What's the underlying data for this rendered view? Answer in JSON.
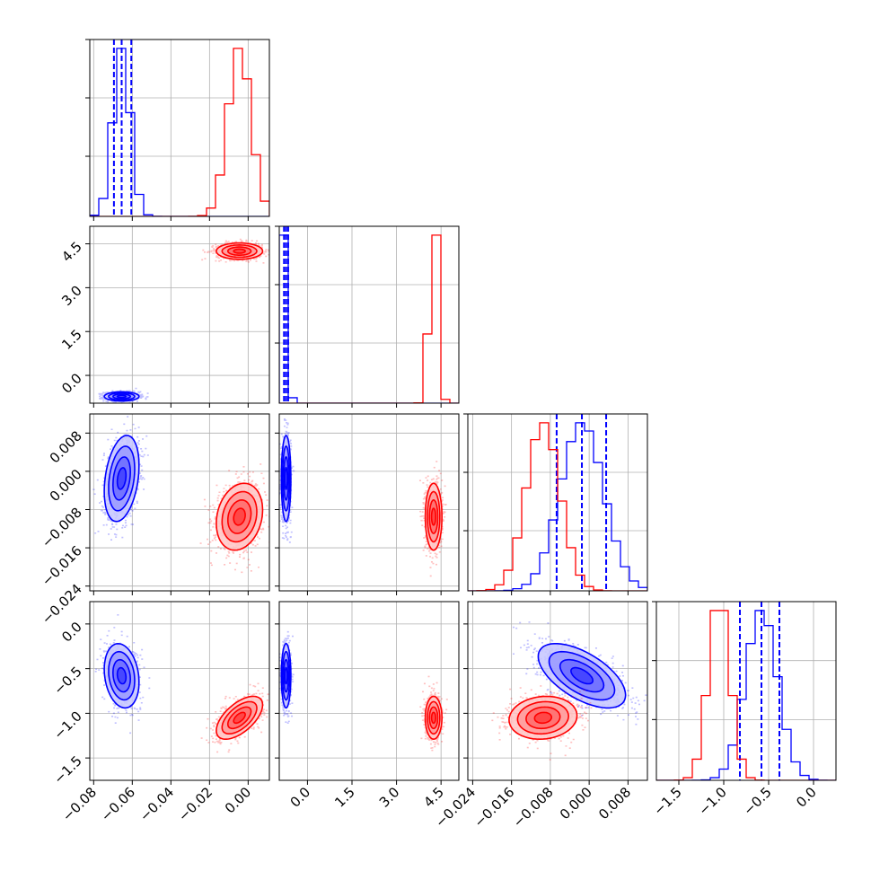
{
  "chart_data": {
    "type": "corner",
    "title": "",
    "parameters": [
      {
        "ticks": [
          -0.08,
          -0.06,
          -0.04,
          -0.02,
          0.0
        ],
        "tick_labels": [
          "−0.08",
          "−0.06",
          "−0.04",
          "−0.02",
          "0.00"
        ],
        "range": [
          -0.082,
          0.011
        ]
      },
      {
        "ticks": [
          0.0,
          1.5,
          3.0,
          4.5
        ],
        "tick_labels": [
          "0.0",
          "1.5",
          "3.0",
          "4.5"
        ],
        "range": [
          -0.95,
          5.1
        ]
      },
      {
        "ticks": [
          -0.024,
          -0.016,
          -0.008,
          0.0,
          0.008
        ],
        "tick_labels": [
          "−0.024",
          "−0.016",
          "−0.008",
          "0.000",
          "0.008"
        ],
        "range": [
          -0.025,
          0.012
        ]
      },
      {
        "ticks": [
          -1.5,
          -1.0,
          -0.5,
          0.0
        ],
        "tick_labels": [
          "−1.5",
          "−1.0",
          "−0.5",
          "0.0"
        ],
        "range": [
          -1.75,
          0.25
        ]
      }
    ],
    "series": [
      {
        "name": "",
        "color": "#0000ff",
        "means": [
          -0.0655,
          -0.72,
          -0.0015,
          -0.58
        ],
        "sigmas": [
          0.0045,
          0.08,
          0.0045,
          0.18
        ],
        "quantile_lines": [
          [
            -0.0695,
            -0.0655,
            -0.0605
          ],
          [
            -0.79,
            -0.72,
            -0.65
          ],
          [
            -0.0067,
            -0.0015,
            0.0035
          ],
          [
            -0.82,
            -0.58,
            -0.38
          ]
        ],
        "correlations": [
          [
            0,
            1,
            0.0
          ],
          [
            0,
            2,
            0.3
          ],
          [
            0,
            3,
            -0.2
          ],
          [
            1,
            2,
            0.0
          ],
          [
            1,
            3,
            0.0
          ],
          [
            2,
            3,
            -0.6
          ]
        ],
        "hist_peak_bins": [
          [
            -0.072,
            -0.068,
            -0.064,
            -0.06
          ],
          [
            -0.74,
            -0.7
          ],
          [
            0.0,
            0.004
          ],
          [
            -0.6,
            -0.5
          ]
        ]
      },
      {
        "name": "",
        "color": "#ff0000",
        "means": [
          -0.0045,
          4.25,
          -0.0095,
          -1.05
        ],
        "sigmas": [
          0.006,
          0.14,
          0.0035,
          0.12
        ],
        "quantile_lines": [],
        "correlations": [
          [
            0,
            1,
            0.0
          ],
          [
            0,
            2,
            0.2
          ],
          [
            0,
            3,
            0.6
          ],
          [
            1,
            2,
            0.0
          ],
          [
            1,
            3,
            0.0
          ],
          [
            2,
            3,
            0.1
          ]
        ],
        "hist_peak_bins": [
          [
            -0.008,
            -0.004
          ],
          [
            4.2,
            4.4
          ],
          [
            -0.012,
            -0.01
          ],
          [
            -1.1,
            -1.0
          ]
        ]
      }
    ],
    "grid": true,
    "contour_levels": [
      0.5,
      1.0,
      1.5,
      2.0
    ],
    "legend": "none"
  }
}
